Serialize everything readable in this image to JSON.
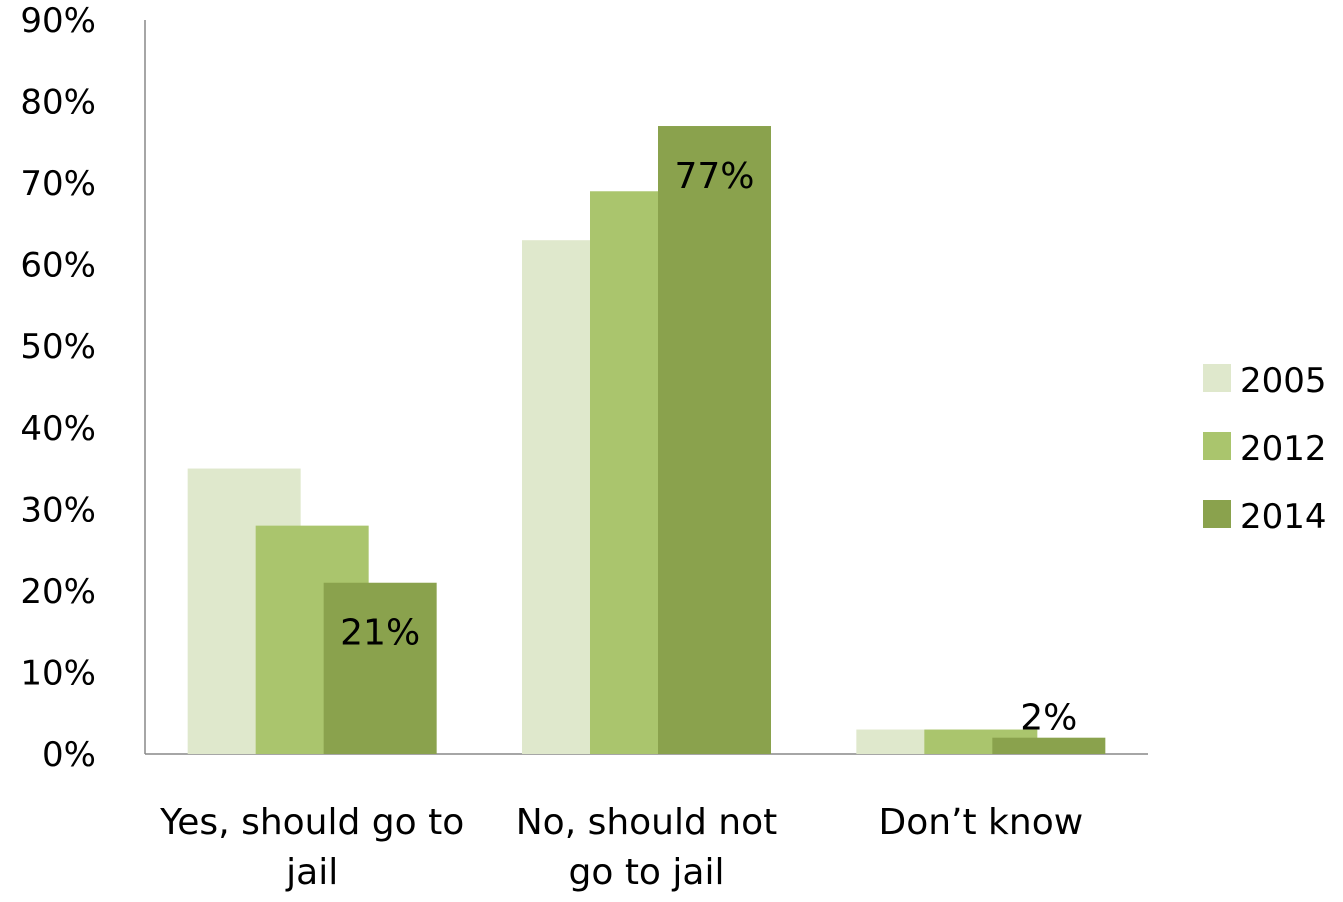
{
  "chart_data": {
    "type": "bar",
    "title": "",
    "xlabel": "",
    "ylabel": "",
    "categories": [
      [
        "Yes, should go to",
        "jail"
      ],
      [
        "No, should not",
        "go to jail"
      ],
      [
        "Don’t know"
      ]
    ],
    "series": [
      {
        "name": "2005",
        "color": "#dfe8cc",
        "values": [
          35,
          63,
          3
        ]
      },
      {
        "name": "2012",
        "color": "#aac56d",
        "values": [
          28,
          69,
          3
        ]
      },
      {
        "name": "2014",
        "color": "#8aa24d",
        "values": [
          21,
          77,
          2
        ]
      }
    ],
    "data_labels": [
      {
        "series": 2,
        "category": 0,
        "text": "21%"
      },
      {
        "series": 2,
        "category": 1,
        "text": "77%"
      },
      {
        "series": 2,
        "category": 2,
        "text": "2%"
      }
    ],
    "y_ticks": [
      "0%",
      "10%",
      "20%",
      "30%",
      "40%",
      "50%",
      "60%",
      "70%",
      "80%",
      "90%"
    ],
    "ylim": [
      0,
      90
    ],
    "grid": false,
    "legend_position": "right"
  }
}
